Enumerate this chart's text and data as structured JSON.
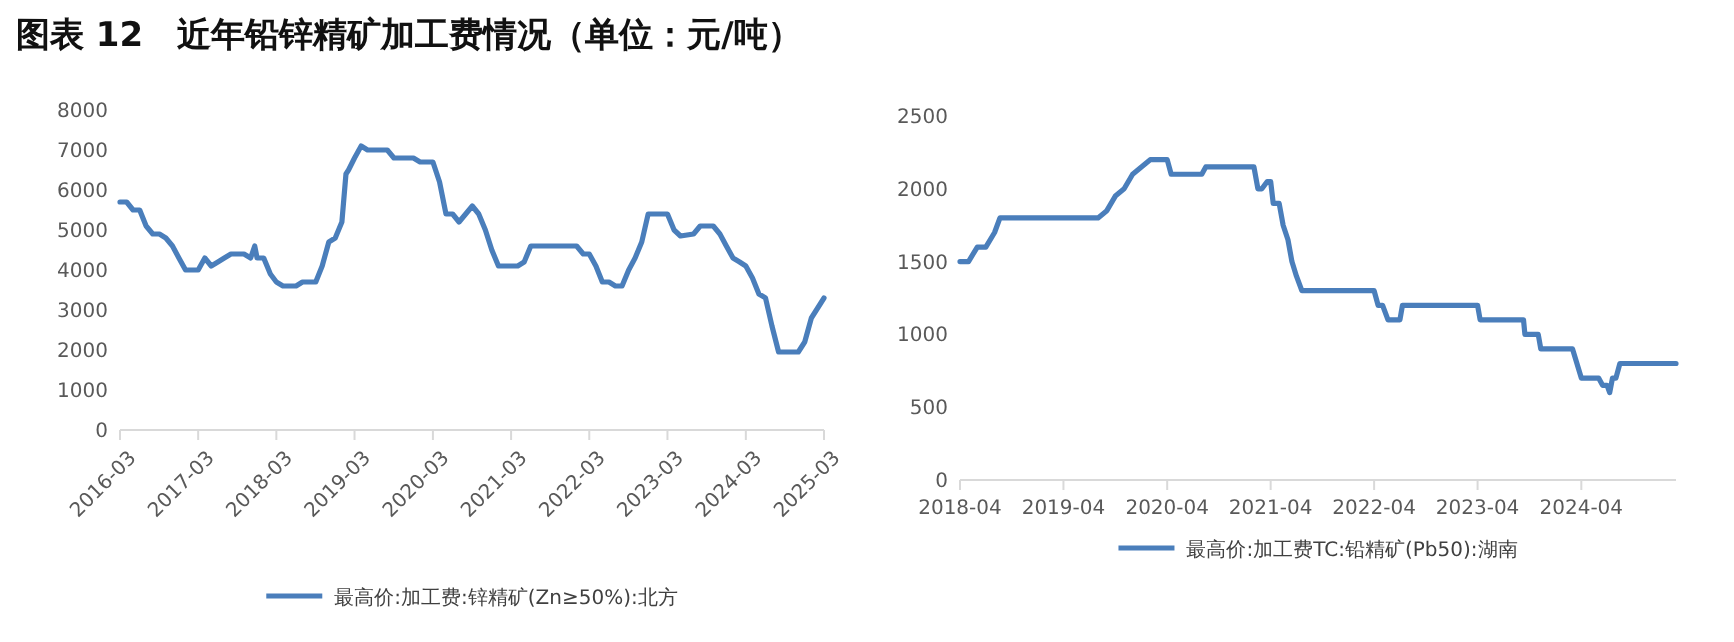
{
  "chart_data": [
    {
      "type": "line",
      "title": "图表 12　近年铅锌精矿加工费情况（单位：元/吨）",
      "legend": "bottom",
      "line_style": "solid",
      "marker": "none",
      "grid": false,
      "xlim": [
        "2016-03",
        "2025-03"
      ],
      "xticks": [
        "2016-03",
        "2017-03",
        "2018-03",
        "2019-03",
        "2020-03",
        "2021-03",
        "2022-03",
        "2023-03",
        "2024-03",
        "2025-03"
      ],
      "ylim": [
        0,
        8000
      ],
      "yticks": [
        0,
        1000,
        2000,
        3000,
        4000,
        5000,
        6000,
        7000,
        8000
      ],
      "series": [
        {
          "name": "最高价:加工费:锌精矿(Zn≥50%):北方",
          "color": "#4a7ebb",
          "x": [
            "2016-03",
            "2016-04",
            "2016-05",
            "2016-06",
            "2016-07",
            "2016-08",
            "2016-09",
            "2016-10",
            "2016-11",
            "2016-12",
            "2017-01",
            "2017-03",
            "2017-04",
            "2017-05",
            "2017-06",
            "2017-07",
            "2017-08",
            "2017-10",
            "2017-11",
            "2017-11-20",
            "2017-12",
            "2018-01",
            "2018-02",
            "2018-03",
            "2018-04",
            "2018-06",
            "2018-07",
            "2018-09",
            "2018-10",
            "2018-11",
            "2018-12",
            "2019-01",
            "2019-01-20",
            "2019-02",
            "2019-03",
            "2019-04",
            "2019-05",
            "2019-08",
            "2019-09",
            "2019-12",
            "2020-01",
            "2020-03",
            "2020-04",
            "2020-05",
            "2020-06",
            "2020-07",
            "2020-08",
            "2020-09",
            "2020-10",
            "2020-11",
            "2020-12",
            "2021-01",
            "2021-04",
            "2021-05",
            "2021-06",
            "2022-01",
            "2022-02",
            "2022-03",
            "2022-04",
            "2022-05",
            "2022-06",
            "2022-07",
            "2022-08",
            "2022-09",
            "2022-10",
            "2022-11",
            "2022-12",
            "2023-03",
            "2023-04",
            "2023-05",
            "2023-07",
            "2023-08",
            "2023-10",
            "2023-11",
            "2023-12",
            "2024-01",
            "2024-02",
            "2024-03",
            "2024-04",
            "2024-05",
            "2024-06",
            "2024-07",
            "2024-08",
            "2024-11",
            "2024-12",
            "2025-01",
            "2025-03"
          ],
          "values": [
            5700,
            5700,
            5500,
            5500,
            5100,
            4900,
            4900,
            4800,
            4600,
            4300,
            4000,
            4000,
            4300,
            4100,
            4200,
            4300,
            4400,
            4400,
            4300,
            4600,
            4300,
            4300,
            3900,
            3700,
            3600,
            3600,
            3700,
            3700,
            4100,
            4700,
            4800,
            5200,
            6400,
            6500,
            6800,
            7100,
            7000,
            7000,
            6800,
            6800,
            6700,
            6700,
            6200,
            5400,
            5400,
            5200,
            5400,
            5600,
            5400,
            5000,
            4500,
            4100,
            4100,
            4200,
            4600,
            4600,
            4400,
            4400,
            4100,
            3700,
            3700,
            3600,
            3600,
            4000,
            4300,
            4700,
            5400,
            5400,
            5000,
            4850,
            4900,
            5100,
            5100,
            4900,
            4600,
            4300,
            4200,
            4100,
            3800,
            3400,
            3300,
            2600,
            1950,
            1950,
            2200,
            2800,
            3300
          ]
        }
      ]
    },
    {
      "type": "line",
      "legend": "bottom",
      "line_style": "solid",
      "marker": "none",
      "grid": false,
      "xlim": [
        "2018-04",
        "2025-03"
      ],
      "xticks": [
        "2018-04",
        "2019-04",
        "2020-04",
        "2021-04",
        "2022-04",
        "2023-04",
        "2024-04"
      ],
      "ylim": [
        0,
        2500
      ],
      "yticks": [
        0,
        500,
        1000,
        1500,
        2000,
        2500
      ],
      "series": [
        {
          "name": "最高价:加工费TC:铅精矿(Pb50):湖南",
          "color": "#4a7ebb",
          "x": [
            "2018-04",
            "2018-05",
            "2018-06",
            "2018-07",
            "2018-08",
            "2018-08-20",
            "2019-08",
            "2019-09",
            "2019-10",
            "2019-11",
            "2019-12",
            "2020-01",
            "2020-02",
            "2020-04",
            "2020-04-15",
            "2020-08",
            "2020-08-15",
            "2021-02",
            "2021-02-15",
            "2021-03",
            "2021-03-20",
            "2021-04",
            "2021-04-10",
            "2021-05",
            "2021-05-15",
            "2021-06",
            "2021-06-15",
            "2021-07",
            "2021-07-20",
            "2022-04",
            "2022-04-15",
            "2022-05",
            "2022-05-20",
            "2022-07",
            "2022-07-10",
            "2023-04",
            "2023-04-10",
            "2023-09-10",
            "2023-09-15",
            "2023-11",
            "2023-11-10",
            "2024-03",
            "2024-04",
            "2024-06",
            "2024-06-15",
            "2024-07",
            "2024-07-10",
            "2024-07-20",
            "2024-08",
            "2024-08-15",
            "2025-03"
          ],
          "values": [
            1500,
            1500,
            1600,
            1600,
            1700,
            1800,
            1800,
            1850,
            1950,
            2000,
            2100,
            2150,
            2200,
            2200,
            2100,
            2100,
            2150,
            2150,
            2000,
            2000,
            2050,
            2050,
            1900,
            1900,
            1750,
            1650,
            1500,
            1400,
            1300,
            1300,
            1200,
            1200,
            1100,
            1100,
            1200,
            1200,
            1100,
            1100,
            1000,
            1000,
            900,
            900,
            700,
            700,
            650,
            650,
            600,
            700,
            700,
            800,
            800
          ]
        }
      ]
    }
  ]
}
